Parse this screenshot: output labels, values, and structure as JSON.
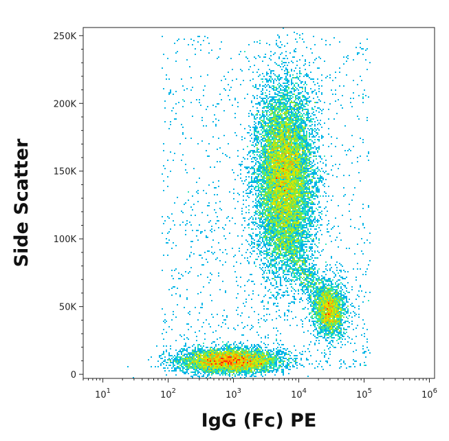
{
  "chart_data": {
    "type": "scatter",
    "subtype": "flow-cytometry-density-dot-plot",
    "title": "",
    "xlabel": "IgG (Fc) PE",
    "ylabel": "Side Scatter",
    "x_scale": "log",
    "xlim": [
      5,
      1200000
    ],
    "y_scale": "linear",
    "ylim": [
      -3000,
      256000
    ],
    "x_ticks": [
      {
        "value": 10,
        "label_base": "10",
        "label_exp": "1"
      },
      {
        "value": 100,
        "label_base": "10",
        "label_exp": "2"
      },
      {
        "value": 1000,
        "label_base": "10",
        "label_exp": "3"
      },
      {
        "value": 10000,
        "label_base": "10",
        "label_exp": "4"
      },
      {
        "value": 100000,
        "label_base": "10",
        "label_exp": "5"
      },
      {
        "value": 1000000,
        "label_base": "10",
        "label_exp": "6"
      }
    ],
    "y_ticks": [
      {
        "value": 0,
        "label": "0"
      },
      {
        "value": 50000,
        "label": "50K"
      },
      {
        "value": 100000,
        "label": "100K"
      },
      {
        "value": 150000,
        "label": "150K"
      },
      {
        "value": 200000,
        "label": "200K"
      },
      {
        "value": 250000,
        "label": "250K"
      }
    ],
    "grid": false,
    "legend": "none",
    "color_scale": [
      "#0000cc",
      "#0044ff",
      "#00b4e6",
      "#2ee6b8",
      "#7fe640",
      "#d8e600",
      "#ffa000",
      "#ff2a00"
    ],
    "populations": [
      {
        "x_center": 900,
        "y_center": 10000,
        "x_spread_decades": 0.38,
        "y_spread": 4500,
        "count": 5200
      },
      {
        "x_center": 6000,
        "y_center": 145000,
        "x_spread_decades": 0.22,
        "y_spread": 33000,
        "count": 12000
      },
      {
        "x_center": 30000,
        "y_center": 47000,
        "x_spread_decades": 0.12,
        "y_spread": 10000,
        "count": 2200
      }
    ]
  }
}
